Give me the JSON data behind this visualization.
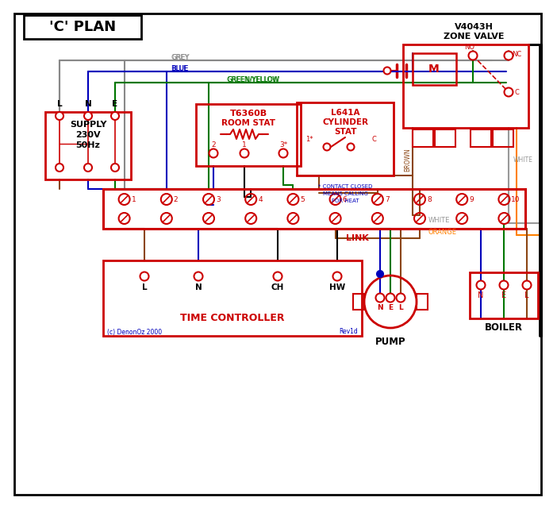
{
  "bg_color": "#ffffff",
  "red": "#cc0000",
  "blue": "#0000bb",
  "green": "#007700",
  "brown": "#8B4513",
  "orange": "#FF8000",
  "grey": "#888888",
  "black": "#000000",
  "white_wire": "#999999",
  "title": "'C' PLAN",
  "zone_valve_lines": [
    "V4043H",
    "ZONE VALVE"
  ],
  "supply_lines": [
    "SUPPLY",
    "230V",
    "50Hz"
  ],
  "tc_title": "TIME CONTROLLER",
  "pump_title": "PUMP",
  "boiler_title": "BOILER",
  "room_stat_lines": [
    "T6360B",
    "ROOM STAT"
  ],
  "cyl_stat_lines": [
    "L641A",
    "CYLINDER",
    "STAT"
  ],
  "contact_note": [
    "* CONTACT CLOSED",
    "MEANS CALLING",
    "FOR HEAT"
  ],
  "footnote_l": "(c) DenonOz 2000",
  "footnote_r": "Rev1d",
  "link_label": "LINK",
  "wire_labels": {
    "grey": "GREY",
    "blue": "BLUE",
    "green_yellow": "GREEN/YELLOW",
    "brown": "BROWN",
    "white": "WHITE",
    "orange": "ORANGE"
  }
}
